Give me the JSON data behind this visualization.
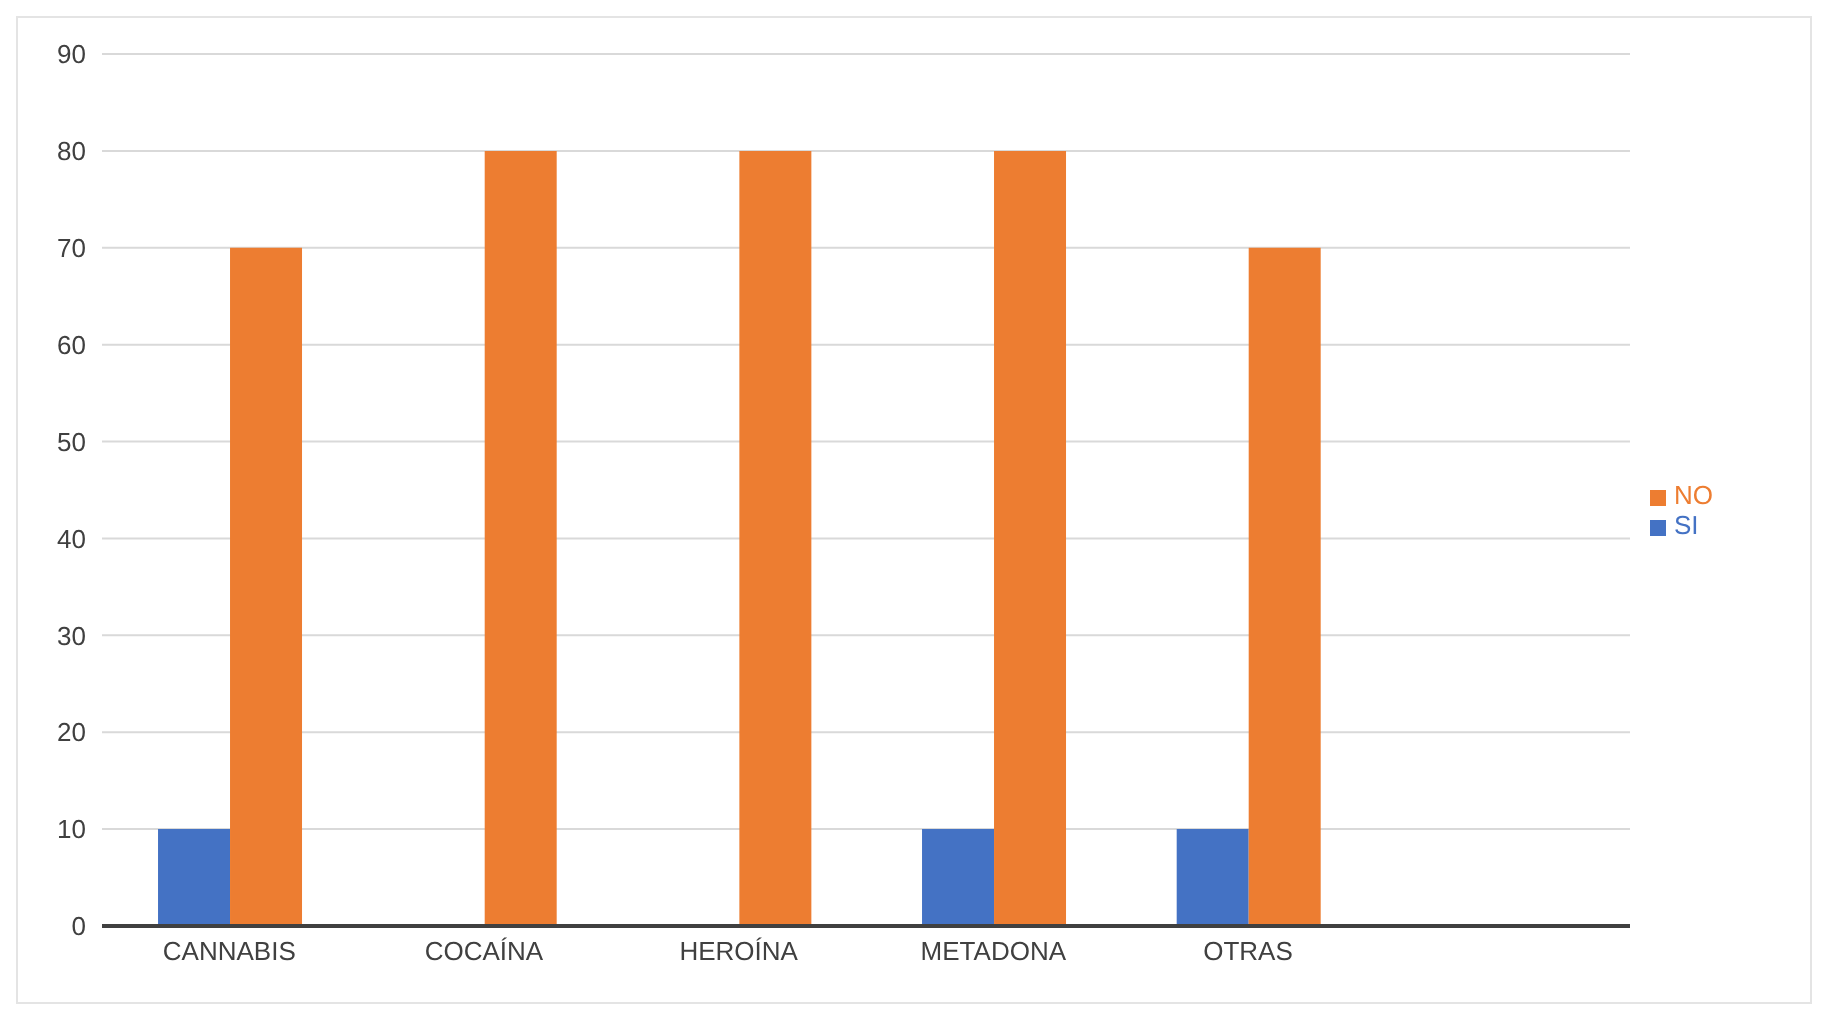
{
  "chart_data": {
    "type": "bar",
    "categories": [
      "CANNABIS",
      "COCAÍNA",
      "HEROÍNA",
      "METADONA",
      "OTRAS",
      null
    ],
    "series": [
      {
        "name": "SI",
        "color": "#4472c4",
        "values": [
          10,
          0,
          0,
          10,
          10,
          null
        ]
      },
      {
        "name": "NO",
        "color": "#ed7d31",
        "values": [
          70,
          80,
          80,
          80,
          70,
          null
        ]
      }
    ],
    "ylim": [
      0,
      90
    ],
    "yticks": [
      0,
      10,
      20,
      30,
      40,
      50,
      60,
      70,
      80,
      90
    ],
    "grid": "y",
    "legend": "right"
  }
}
